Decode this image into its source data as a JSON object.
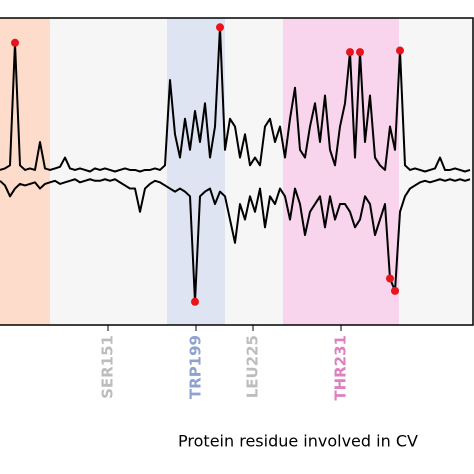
{
  "chart_data": {
    "type": "line",
    "x_label": "Protein residue involved in CV",
    "xlim": [
      0,
      94.8
    ],
    "ylim": [
      -0.98,
      1
    ],
    "xticks": [
      {
        "value": 21.6,
        "label": "SER151",
        "color": "#bdbdbd"
      },
      {
        "value": 39.2,
        "label": "TRP199",
        "color": "#8ea1cf"
      },
      {
        "value": 50.6,
        "label": "LEU225",
        "color": "#bdbdbd"
      },
      {
        "value": 68.2,
        "label": "THR231",
        "color": "#e07fbf"
      }
    ],
    "regions": [
      {
        "start": 0,
        "end": 10,
        "color": "#fddccb"
      },
      {
        "start": 10,
        "end": 33.4,
        "color": "#f6f6f6"
      },
      {
        "start": 33.4,
        "end": 45,
        "color": "#dee4f2"
      },
      {
        "start": 45,
        "end": 56.6,
        "color": "#f6f6f6"
      },
      {
        "start": 56.6,
        "end": 79.8,
        "color": "#f8d4ed"
      },
      {
        "start": 79.8,
        "end": 94.8,
        "color": "#f6f6f6"
      }
    ],
    "marker_color": "#e8131b",
    "x": [
      0,
      1,
      2,
      3,
      4,
      5,
      6,
      7,
      8,
      9,
      10,
      11,
      12,
      13,
      14,
      15,
      16,
      17,
      18,
      19,
      20,
      21,
      22,
      23,
      24,
      25,
      26,
      27,
      28,
      29,
      30,
      31,
      32,
      33,
      34,
      35,
      36,
      37,
      38,
      39,
      40,
      41,
      42,
      43,
      44,
      45,
      46,
      47,
      48,
      49,
      50,
      51,
      52,
      53,
      54,
      55,
      56,
      57,
      58,
      59,
      60,
      61,
      62,
      63,
      64,
      65,
      66,
      67,
      68,
      69,
      70,
      71,
      72,
      73,
      74,
      75,
      76,
      77,
      78,
      79,
      80,
      81,
      82,
      83,
      84,
      85,
      86,
      87,
      88,
      89,
      90,
      91,
      92,
      93,
      94
    ],
    "series": [
      {
        "color": "#000000",
        "marked": [
          3,
          44,
          70,
          72,
          80
        ],
        "values": [
          0.02,
          0.03,
          0.05,
          0.84,
          0.05,
          0.02,
          0.03,
          0.02,
          0.2,
          0.03,
          0.02,
          0.03,
          0.04,
          0.1,
          0.03,
          0.02,
          0.03,
          0.02,
          0.01,
          0.03,
          0.02,
          0.03,
          0.02,
          0.01,
          0.02,
          0.03,
          0.02,
          0.02,
          0.01,
          0.02,
          0.02,
          0.03,
          0.02,
          0.05,
          0.6,
          0.25,
          0.1,
          0.35,
          0.15,
          0.4,
          0.2,
          0.45,
          0.1,
          0.3,
          0.94,
          0.15,
          0.35,
          0.3,
          0.1,
          0.25,
          0.05,
          0.1,
          0.05,
          0.3,
          0.35,
          0.2,
          0.3,
          0.1,
          0.35,
          0.55,
          0.15,
          0.1,
          0.3,
          0.45,
          0.2,
          0.5,
          0.15,
          0.05,
          0.3,
          0.45,
          0.78,
          0.1,
          0.78,
          0.2,
          0.5,
          0.1,
          0.05,
          0.02,
          0.3,
          0.15,
          0.79,
          0.05,
          0.02,
          0.03,
          0.02,
          0.01,
          0.02,
          0.03,
          0.1,
          0.02,
          0.02,
          0.03,
          0.02,
          0.01,
          0.02
        ]
      },
      {
        "color": "#000000",
        "marked": [
          39,
          78,
          79
        ],
        "values": [
          -0.05,
          -0.08,
          -0.15,
          -0.1,
          -0.07,
          -0.08,
          -0.07,
          -0.06,
          -0.1,
          -0.07,
          -0.06,
          -0.05,
          -0.07,
          -0.06,
          -0.05,
          -0.04,
          -0.06,
          -0.05,
          -0.04,
          -0.05,
          -0.05,
          -0.04,
          -0.05,
          -0.04,
          -0.06,
          -0.08,
          -0.1,
          -0.1,
          -0.25,
          -0.1,
          -0.07,
          -0.05,
          -0.06,
          -0.08,
          -0.1,
          -0.12,
          -0.1,
          -0.12,
          -0.15,
          -0.83,
          -0.15,
          -0.12,
          -0.1,
          -0.2,
          -0.12,
          -0.15,
          -0.3,
          -0.45,
          -0.2,
          -0.3,
          -0.15,
          -0.25,
          -0.1,
          -0.35,
          -0.15,
          -0.2,
          -0.1,
          -0.15,
          -0.3,
          -0.1,
          -0.2,
          -0.4,
          -0.25,
          -0.2,
          -0.15,
          -0.35,
          -0.15,
          -0.3,
          -0.2,
          -0.2,
          -0.25,
          -0.35,
          -0.3,
          -0.15,
          -0.2,
          -0.4,
          -0.3,
          -0.2,
          -0.68,
          -0.76,
          -0.25,
          -0.15,
          -0.1,
          -0.08,
          -0.06,
          -0.05,
          -0.06,
          -0.05,
          -0.04,
          -0.05,
          -0.04,
          -0.05,
          -0.04,
          -0.05,
          -0.04
        ]
      }
    ]
  }
}
